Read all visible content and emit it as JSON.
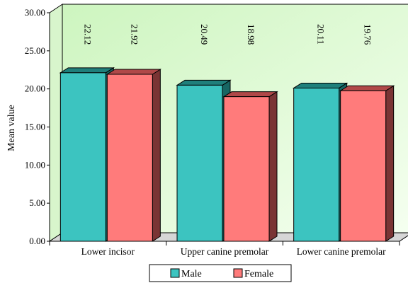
{
  "chart_data": {
    "type": "bar",
    "categories": [
      "Lower incisor",
      "Upper canine premolar",
      "Lower canine premolar"
    ],
    "series": [
      {
        "name": "Male",
        "values": [
          22.12,
          20.49,
          20.11
        ],
        "labels": [
          "22.12",
          "20.49",
          "20.11"
        ]
      },
      {
        "name": "Female",
        "values": [
          21.92,
          18.98,
          19.76
        ],
        "labels": [
          "21.92",
          "18.98",
          "19.76"
        ]
      }
    ],
    "ylabel": "Mean value",
    "xlabel": "",
    "ylim": [
      0,
      30
    ],
    "yticks": [
      "0.00",
      "5.00",
      "10.00",
      "15.00",
      "20.00",
      "25.00",
      "30.00"
    ],
    "grid": false,
    "legend_position": "bottom",
    "three_d": true,
    "colors": {
      "male_front": "#3cc4c0",
      "male_top": "#1f7f7b",
      "male_side": "#176663",
      "female_front": "#ff7b7b",
      "female_top": "#b04848",
      "female_side": "#7a3434",
      "wall": "#e8fde1",
      "floor": "#d6d6d6"
    }
  }
}
